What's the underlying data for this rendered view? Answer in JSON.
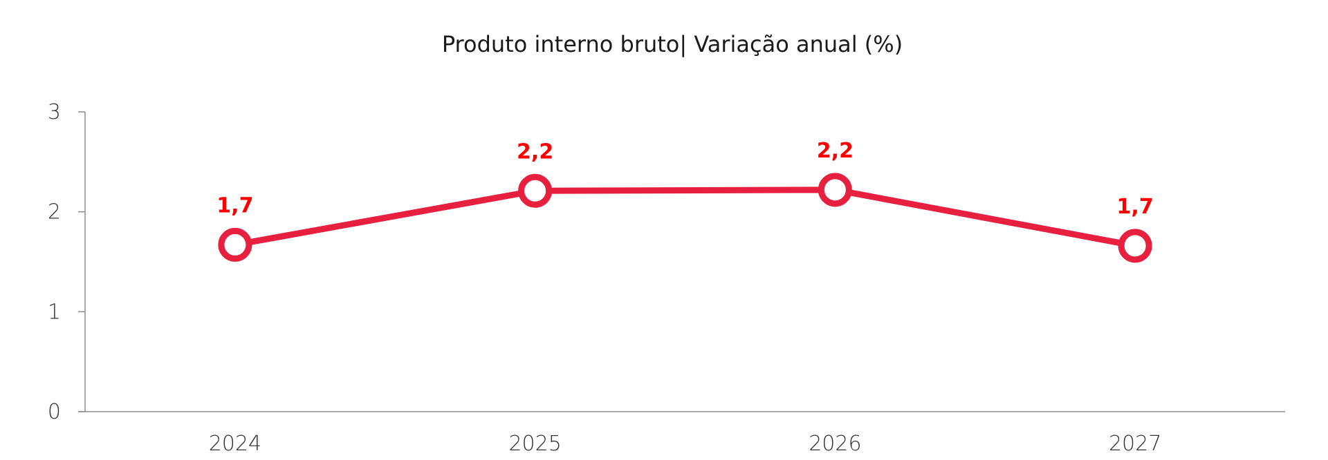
{
  "chart_data": {
    "type": "line",
    "title": "Produto interno bruto| Variação anual (%)",
    "xlabel": "",
    "ylabel": "",
    "categories": [
      "2024",
      "2025",
      "2026",
      "2027"
    ],
    "series": [
      {
        "values": [
          1.67,
          2.21,
          2.22,
          1.66
        ],
        "labels": [
          "1,7",
          "2,2",
          "2,2",
          "1,7"
        ]
      }
    ],
    "ylim": [
      0,
      3
    ],
    "yticks": [
      "0",
      "1",
      "2",
      "3"
    ],
    "grid": false,
    "legend": "none",
    "colors": {
      "line": "#e8203f",
      "marker_fill": "#ffffff",
      "label": "#ff0000"
    }
  }
}
